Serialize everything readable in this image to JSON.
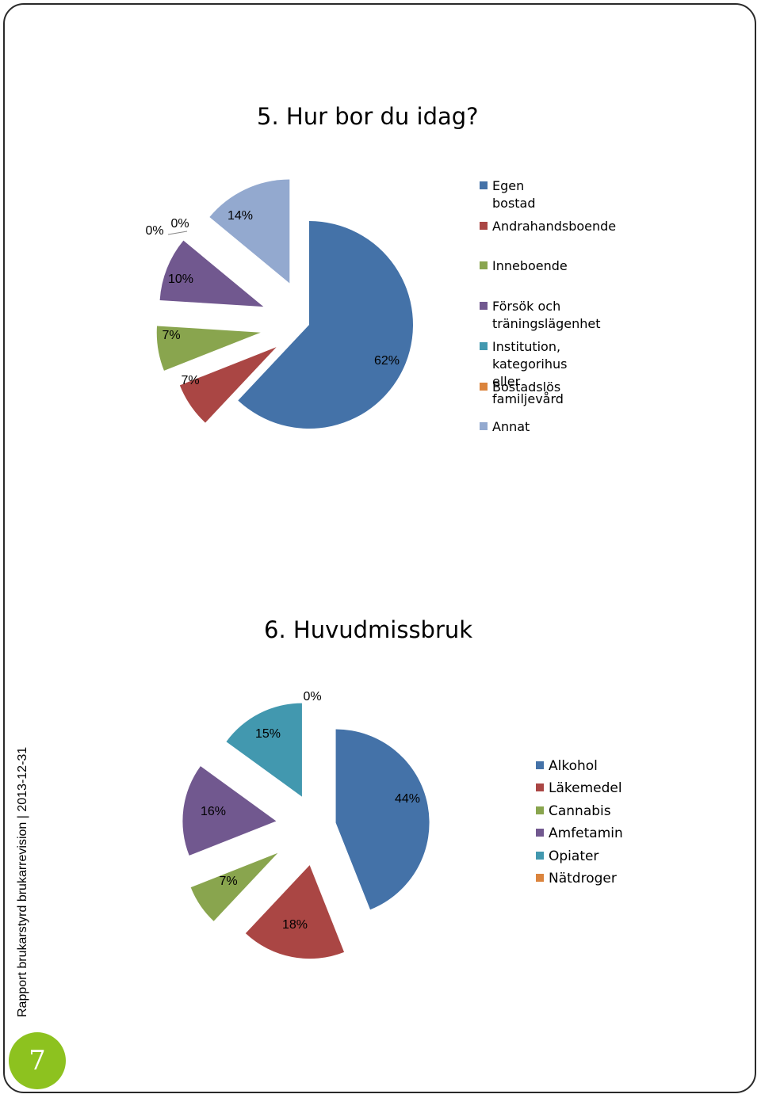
{
  "chart_data": [
    {
      "type": "pie",
      "title": "5. Hur bor du idag?",
      "legend_position": "right",
      "slices": [
        {
          "name": "Egen bostad",
          "value": 62,
          "label": "62%",
          "color": "#4472a8"
        },
        {
          "name": "Andrahandsboende",
          "value": 7,
          "label": "7%",
          "color": "#aa4644"
        },
        {
          "name": "Inneboende",
          "value": 7,
          "label": "7%",
          "color": "#89a54e"
        },
        {
          "name": "Försök och\nträningslägenhet",
          "value": 10,
          "label": "10%",
          "color": "#71588f"
        },
        {
          "name": "Institution, kategorihus\neller familjevård",
          "value": 0,
          "label": "0%",
          "color": "#4298af"
        },
        {
          "name": "Bostadslös",
          "value": 0,
          "label": "0%",
          "color": "#db843d"
        },
        {
          "name": "Annat",
          "value": 14,
          "label": "14%",
          "color": "#93a9cf"
        }
      ]
    },
    {
      "type": "pie",
      "title": "6. Huvudmissbruk",
      "legend_position": "right",
      "slices": [
        {
          "name": "Alkohol",
          "value": 44,
          "label": "44%",
          "color": "#4472a8"
        },
        {
          "name": "Läkemedel",
          "value": 18,
          "label": "18%",
          "color": "#aa4644"
        },
        {
          "name": "Cannabis",
          "value": 7,
          "label": "7%",
          "color": "#89a54e"
        },
        {
          "name": "Amfetamin",
          "value": 16,
          "label": "16%",
          "color": "#71588f"
        },
        {
          "name": "Opiater",
          "value": 15,
          "label": "15%",
          "color": "#4298af"
        },
        {
          "name": "Nätdroger",
          "value": 0,
          "label": "0%",
          "color": "#db843d"
        }
      ]
    }
  ],
  "sidebar": {
    "report_text": "Rapport brukarstyrd brukarrevision | 2013-12-31",
    "page_number": "7"
  }
}
